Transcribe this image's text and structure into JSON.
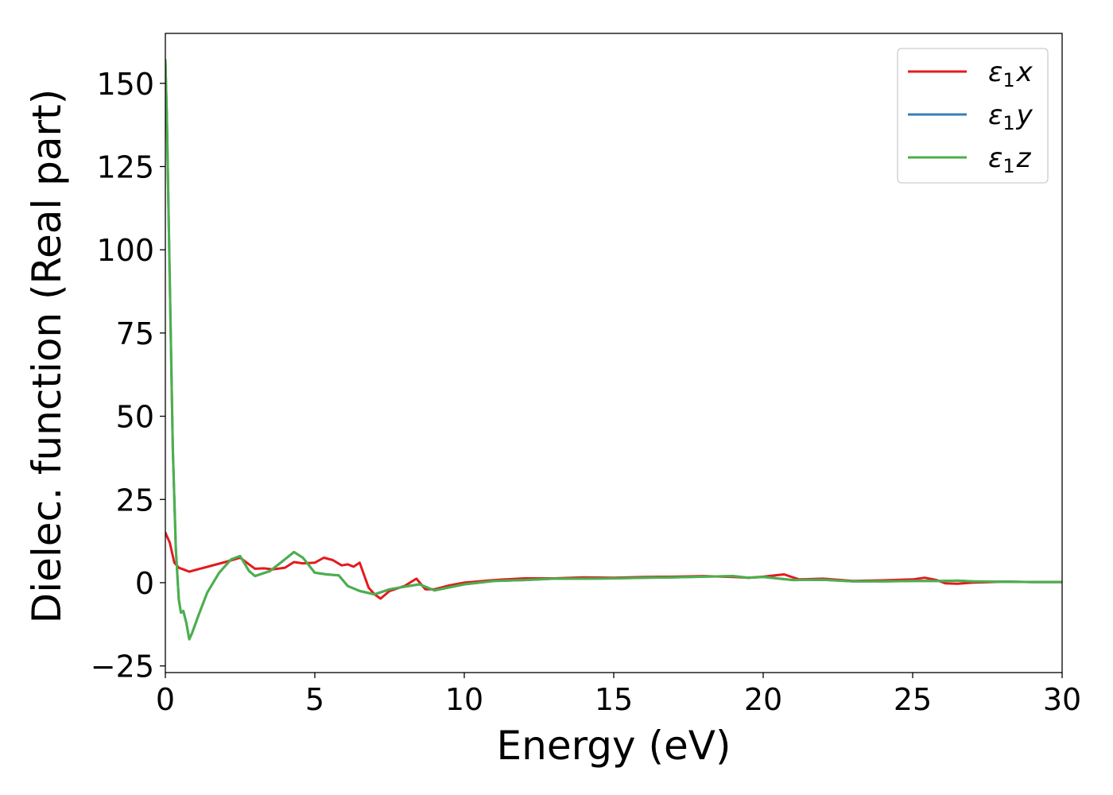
{
  "chart_data": {
    "type": "line",
    "title": "",
    "xlabel": "Energy (eV)",
    "ylabel": "Dielec. function (Real part)",
    "xlim": [
      0,
      30
    ],
    "ylim": [
      -27,
      165
    ],
    "xticks": [
      0,
      5,
      10,
      15,
      20,
      25,
      30
    ],
    "xtick_labels": [
      "0",
      "5",
      "10",
      "15",
      "20",
      "25",
      "30"
    ],
    "yticks": [
      -25,
      0,
      25,
      50,
      75,
      100,
      125,
      150
    ],
    "ytick_labels": [
      "−25",
      "0",
      "25",
      "50",
      "75",
      "100",
      "125",
      "150"
    ],
    "grid": false,
    "legend_position": "top-right",
    "series": [
      {
        "name": "ε1x",
        "legend_symbol": "ε",
        "legend_sub": "1",
        "legend_var": "x",
        "color": "#e41a1c",
        "x": [
          0,
          0.15,
          0.3,
          0.45,
          0.6,
          0.8,
          1.0,
          1.5,
          2.0,
          2.5,
          2.8,
          3.0,
          3.3,
          3.6,
          4.0,
          4.3,
          4.6,
          5.0,
          5.3,
          5.6,
          5.9,
          6.1,
          6.3,
          6.5,
          6.8,
          7.0,
          7.2,
          7.5,
          8.0,
          8.4,
          8.7,
          9.0,
          9.5,
          10.0,
          11.0,
          12.0,
          13.0,
          14.0,
          15.0,
          16.0,
          17.0,
          18.0,
          19.0,
          19.5,
          20.0,
          20.7,
          21.2,
          22.0,
          23.0,
          24.0,
          25.0,
          25.4,
          25.8,
          26.1,
          26.5,
          27.0,
          28.0,
          29.0,
          30.0
        ],
        "y": [
          15,
          12,
          6,
          4.5,
          4,
          3.3,
          3.8,
          5,
          6.2,
          7.5,
          5.5,
          4.2,
          4.3,
          4,
          4.5,
          6.2,
          5.8,
          6.0,
          7.5,
          6.8,
          5.2,
          5.5,
          4.8,
          6.0,
          -1.5,
          -3.5,
          -4.8,
          -2.5,
          -1,
          1.2,
          -2.0,
          -2.0,
          -0.8,
          0,
          0.8,
          1.3,
          1.3,
          1.6,
          1.5,
          1.7,
          1.8,
          2.0,
          1.7,
          1.5,
          1.8,
          2.5,
          1.0,
          1.2,
          0.5,
          0.7,
          1.0,
          1.5,
          0.8,
          -0.2,
          -0.3,
          0.0,
          0.3,
          0.2,
          0.2
        ]
      },
      {
        "name": "ε1y",
        "legend_symbol": "ε",
        "legend_sub": "1",
        "legend_var": "y",
        "color": "#377eb8",
        "x": [
          0,
          0.05,
          0.15,
          0.25,
          0.35,
          0.45,
          0.52,
          0.6,
          0.7,
          0.8,
          0.9,
          1.1,
          1.4,
          1.8,
          2.2,
          2.5,
          2.8,
          3.0,
          3.5,
          4.0,
          4.3,
          4.6,
          5.0,
          5.4,
          5.8,
          6.1,
          6.5,
          7.0,
          7.5,
          8.0,
          8.5,
          9.0,
          10.0,
          11.0,
          12.0,
          13.0,
          14.0,
          15.0,
          16.0,
          17.0,
          18.0,
          19.0,
          19.5,
          20.0,
          21.0,
          22.0,
          23.0,
          24.0,
          25.0,
          26.0,
          26.5,
          27.0,
          28.0,
          29.0,
          30.0
        ],
        "y": [
          157,
          140,
          90,
          40,
          10,
          -5,
          -9,
          -8.5,
          -12,
          -17,
          -15,
          -10,
          -3,
          3,
          7,
          8,
          3.5,
          2,
          3.5,
          7,
          9.2,
          7.5,
          3,
          2.5,
          2.2,
          -1,
          -2.5,
          -3.5,
          -2,
          -1.2,
          -0.5,
          -2.3,
          -0.5,
          0.5,
          0.8,
          1.2,
          1.2,
          1.3,
          1.5,
          1.6,
          1.8,
          2.0,
          1.5,
          1.7,
          0.8,
          0.9,
          0.4,
          0.4,
          0.5,
          0.5,
          0.6,
          0.4,
          0.3,
          0.2,
          0.2
        ]
      },
      {
        "name": "ε1z",
        "legend_symbol": "ε",
        "legend_sub": "1",
        "legend_var": "z",
        "color": "#4daf4a",
        "x": [
          0,
          0.05,
          0.15,
          0.25,
          0.35,
          0.45,
          0.52,
          0.6,
          0.7,
          0.8,
          0.9,
          1.1,
          1.4,
          1.8,
          2.2,
          2.5,
          2.8,
          3.0,
          3.5,
          4.0,
          4.3,
          4.6,
          5.0,
          5.4,
          5.8,
          6.1,
          6.5,
          7.0,
          7.5,
          8.0,
          8.5,
          9.0,
          10.0,
          11.0,
          12.0,
          13.0,
          14.0,
          15.0,
          16.0,
          17.0,
          18.0,
          19.0,
          19.5,
          20.0,
          21.0,
          22.0,
          23.0,
          24.0,
          25.0,
          26.0,
          26.5,
          27.0,
          28.0,
          29.0,
          30.0
        ],
        "y": [
          157,
          140,
          90,
          40,
          10,
          -5,
          -9,
          -8.5,
          -12,
          -17,
          -15,
          -10,
          -3,
          3,
          7,
          8,
          3.5,
          2,
          3.5,
          7,
          9.2,
          7.5,
          3,
          2.5,
          2.2,
          -1,
          -2.5,
          -3.5,
          -2,
          -1.2,
          -0.5,
          -2.3,
          -0.5,
          0.5,
          0.8,
          1.2,
          1.2,
          1.3,
          1.5,
          1.6,
          1.8,
          2.0,
          1.5,
          1.7,
          0.8,
          0.9,
          0.4,
          0.4,
          0.5,
          0.5,
          0.6,
          0.4,
          0.3,
          0.2,
          0.2
        ]
      }
    ]
  }
}
